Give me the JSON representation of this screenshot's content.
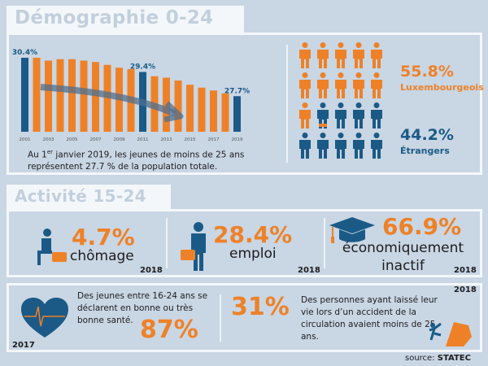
{
  "section1": {
    "title": "Démographie 0-24 ans",
    "caption_prefix": "Au 1",
    "caption_sup": "er",
    "caption_rest": " janvier 2019, les jeunes de moins de 25 ans représentent 27.7 % de la population totale.",
    "luxembourgeois_pct": "55.8%",
    "luxembourgeois_label": "Luxembourgeois",
    "etrangers_pct": "44.2%",
    "etrangers_label": "Étrangers",
    "people_total": 20,
    "people_orange_fraction": 0.558
  },
  "chart_data": {
    "type": "bar",
    "title": "",
    "xlabel": "",
    "ylabel": "",
    "x": [
      2001,
      2002,
      2003,
      2004,
      2005,
      2006,
      2007,
      2008,
      2009,
      2010,
      2011,
      2012,
      2013,
      2014,
      2015,
      2016,
      2017,
      2018,
      2019
    ],
    "tick_labels": [
      "2001",
      "2003",
      "2005",
      "2007",
      "2009",
      "2011",
      "2013",
      "2015",
      "2017",
      "2019"
    ],
    "values": [
      30.4,
      30.4,
      30.2,
      30.3,
      30.3,
      30.2,
      30.1,
      29.9,
      29.7,
      29.6,
      29.4,
      29.1,
      29.0,
      28.8,
      28.5,
      28.3,
      28.1,
      27.9,
      27.7
    ],
    "highlighted": [
      2001,
      2011,
      2019
    ],
    "data_labels": {
      "2001": "30.4%",
      "2011": "29.4%",
      "2019": "27.7%"
    },
    "ylim": [
      25.2,
      30.6
    ],
    "grid": false,
    "colors": {
      "default": "#ee8127",
      "highlight": "#1b5a86"
    }
  },
  "section2": {
    "title": "Activité 15-24 ans",
    "items": [
      {
        "value": "4.7%",
        "label": "chômage",
        "year": "2018"
      },
      {
        "value": "28.4%",
        "label": "emploi",
        "year": "2018"
      },
      {
        "value": "66.9%",
        "label": "économiquement inactif",
        "year": "2018"
      }
    ]
  },
  "section3": {
    "health_text": "Des jeunes entre 16-24 ans se déclarent en bonne ou très bonne santé.",
    "health_value": "87%",
    "health_year": "2017",
    "road_value": "31%",
    "road_text": "Des personnes ayant laissé leur vie lors d’un accident de la circulation avaient moins de 25 ans.",
    "road_year": "2018"
  },
  "source_prefix": "source: ",
  "source_name": "STATEC",
  "colors": {
    "orange": "#ee8127",
    "blue": "#1b5a86",
    "background": "#c9d6e4"
  }
}
